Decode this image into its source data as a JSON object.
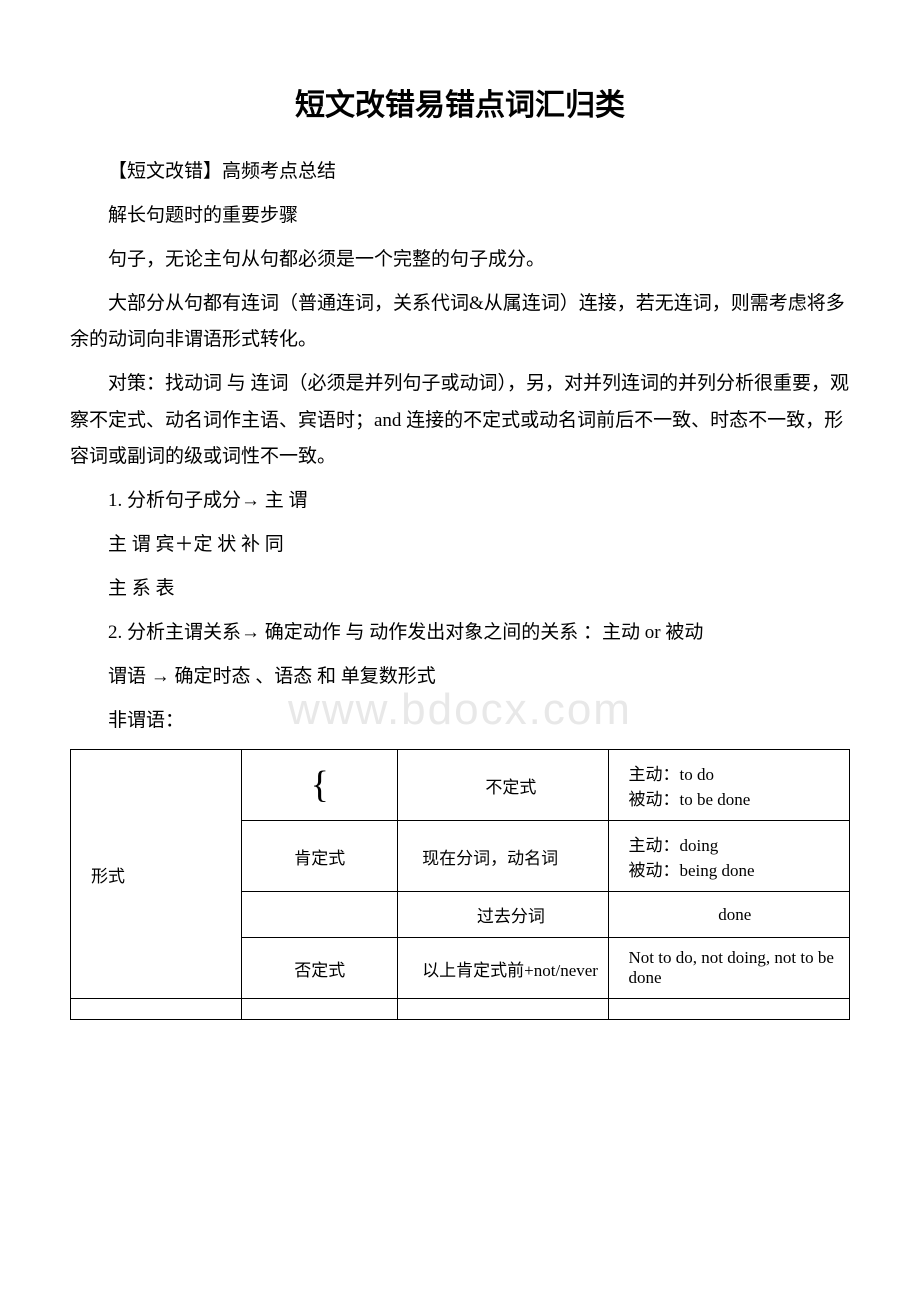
{
  "title": "短文改错易错点词汇归类",
  "subtitle": "【短文改错】高频考点总结",
  "heading1": "解长句题时的重要步骤",
  "p1": "句子，无论主句从句都必须是一个完整的句子成分。",
  "p2": "大部分从句都有连词（普通连词，关系代词&从属连词）连接，若无连词，则需考虑将多余的动词向非谓语形式转化。",
  "p3": "对策：找动词 与 连词（必须是并列句子或动词），另，对并列连词的并列分析很重要，观察不定式、动名词作主语、宾语时；and 连接的不定式或动名词前后不一致、时态不一致，形容词或副词的级或词性不一致。",
  "item1": "1. 分析句子成分→ 主 谓",
  "item1a": "主 谓 宾＋定 状 补 同",
  "item1b": "主 系 表",
  "item2": "2. 分析主谓关系→ 确定动作 与 动作发出对象之间的关系 ：主动 or 被动",
  "item2a": "谓语 → 确定时态 、语态 和 单复数形式",
  "item2b": "非谓语：",
  "watermark": "www.bdocx.com",
  "table": {
    "columns": [
      {
        "width": "22%",
        "align": "left"
      },
      {
        "width": "20%",
        "align": "center"
      },
      {
        "width": "27%",
        "align": "left"
      },
      {
        "width": "31%",
        "align": "left"
      }
    ],
    "rows": [
      {
        "c1_rowspan": 4,
        "c1": "形式",
        "c2": "{",
        "c2_is_brace": true,
        "c3": "不定式",
        "c4": "主动：to do\n被动：to be done"
      },
      {
        "c2": "肯定式",
        "c3": "现在分词，动名词",
        "c4": "主动：doing\n被动：being done"
      },
      {
        "c2": "",
        "c3": "过去分词",
        "c4": "done",
        "c4_center": true
      },
      {
        "c2": "否定式",
        "c3": "以上肯定式前+not/never",
        "c4": "Not to do, not doing, not to be done"
      }
    ],
    "border_color": "#000000",
    "font_size": 17
  },
  "colors": {
    "background": "#ffffff",
    "text": "#000000",
    "watermark": "#e8e8e8",
    "border": "#000000"
  },
  "fonts": {
    "title_size": 30,
    "body_size": 19,
    "table_size": 17,
    "watermark_size": 44
  }
}
